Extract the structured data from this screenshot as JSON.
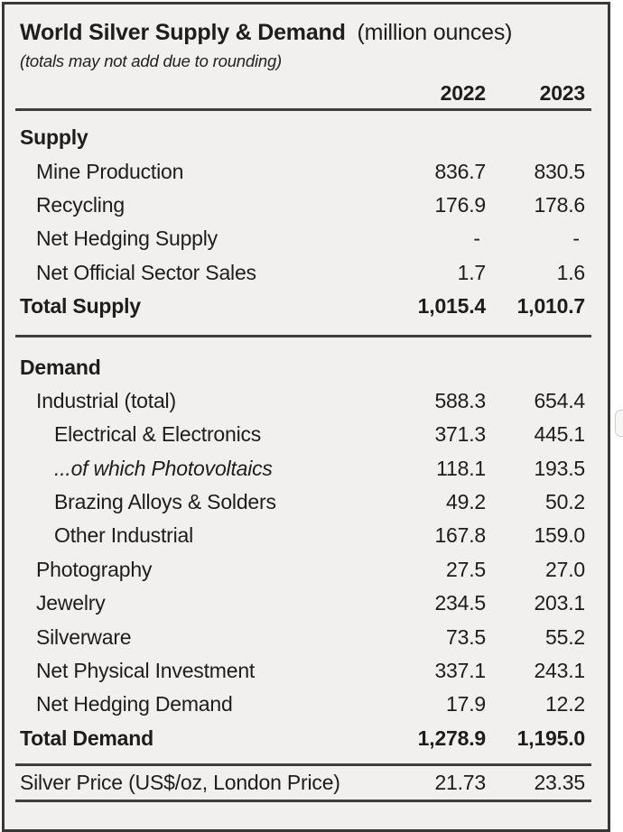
{
  "header": {
    "title": "World Silver Supply & Demand",
    "unit": "(million ounces)",
    "note": "(totals may not add due to rounding)",
    "col1": "2022",
    "col2": "2023"
  },
  "table": {
    "rows": [
      {
        "label": "Supply",
        "v1": "",
        "v2": ""
      },
      {
        "label": "Mine Production",
        "v1": "836.7",
        "v2": "830.5"
      },
      {
        "label": "Recycling",
        "v1": "176.9",
        "v2": "178.6"
      },
      {
        "label": "Net Hedging Supply",
        "v1": "- ",
        "v2": "- "
      },
      {
        "label": "Net Official Sector Sales",
        "v1": "1.7",
        "v2": "1.6"
      },
      {
        "label": "Total Supply",
        "v1": "1,015.4",
        "v2": "1,010.7"
      },
      {
        "label": "Demand",
        "v1": "",
        "v2": ""
      },
      {
        "label": "Industrial (total)",
        "v1": "588.3",
        "v2": "654.4"
      },
      {
        "label": "Electrical & Electronics",
        "v1": "371.3",
        "v2": "445.1"
      },
      {
        "label": "...of which Photovoltaics",
        "v1": "118.1",
        "v2": "193.5"
      },
      {
        "label": "Brazing Alloys & Solders",
        "v1": "49.2",
        "v2": "50.2"
      },
      {
        "label": "Other Industrial",
        "v1": "167.8",
        "v2": "159.0"
      },
      {
        "label": "Photography",
        "v1": "27.5",
        "v2": "27.0"
      },
      {
        "label": "Jewelry",
        "v1": "234.5",
        "v2": "203.1"
      },
      {
        "label": "Silverware",
        "v1": "73.5",
        "v2": "55.2"
      },
      {
        "label": "Net Physical Investment",
        "v1": "337.1",
        "v2": "243.1"
      },
      {
        "label": "Net Hedging Demand",
        "v1": "17.9",
        "v2": "12.2"
      },
      {
        "label": "Total Demand",
        "v1": "1,278.9",
        "v2": "1,195.0"
      },
      {
        "label": "Silver Price (US$/oz, London Price)",
        "v1": "21.73",
        "v2": "23.35"
      }
    ]
  },
  "colors": {
    "panel_background": "#f1f0ee",
    "border": "#383838",
    "rule": "#3f3f3f",
    "text": "#1d1d1d"
  },
  "chart_data": {
    "type": "table",
    "title": "World Silver Supply & Demand (million ounces)",
    "note": "(totals may not add due to rounding)",
    "columns": [
      "2022",
      "2023"
    ],
    "rows": [
      {
        "label": "Supply",
        "role": "section",
        "values": [
          null,
          null
        ]
      },
      {
        "label": "Mine Production",
        "role": "item",
        "values": [
          836.7,
          830.5
        ]
      },
      {
        "label": "Recycling",
        "role": "item",
        "values": [
          176.9,
          178.6
        ]
      },
      {
        "label": "Net Hedging Supply",
        "role": "item",
        "values": [
          null,
          null
        ]
      },
      {
        "label": "Net Official Sector Sales",
        "role": "item",
        "values": [
          1.7,
          1.6
        ]
      },
      {
        "label": "Total Supply",
        "role": "total",
        "values": [
          1015.4,
          1010.7
        ]
      },
      {
        "label": "Demand",
        "role": "section",
        "values": [
          null,
          null
        ]
      },
      {
        "label": "Industrial (total)",
        "role": "item",
        "values": [
          588.3,
          654.4
        ]
      },
      {
        "label": "Electrical & Electronics",
        "role": "subitem",
        "values": [
          371.3,
          445.1
        ]
      },
      {
        "label": "...of which Photovoltaics",
        "role": "subitem-italic",
        "values": [
          118.1,
          193.5
        ]
      },
      {
        "label": "Brazing Alloys & Solders",
        "role": "subitem",
        "values": [
          49.2,
          50.2
        ]
      },
      {
        "label": "Other Industrial",
        "role": "subitem",
        "values": [
          167.8,
          159.0
        ]
      },
      {
        "label": "Photography",
        "role": "item",
        "values": [
          27.5,
          27.0
        ]
      },
      {
        "label": "Jewelry",
        "role": "item",
        "values": [
          234.5,
          203.1
        ]
      },
      {
        "label": "Silverware",
        "role": "item",
        "values": [
          73.5,
          55.2
        ]
      },
      {
        "label": "Net Physical Investment",
        "role": "item",
        "values": [
          337.1,
          243.1
        ]
      },
      {
        "label": "Net Hedging Demand",
        "role": "item",
        "values": [
          17.9,
          12.2
        ]
      },
      {
        "label": "Total Demand",
        "role": "total",
        "values": [
          1278.9,
          1195.0
        ]
      },
      {
        "label": "Silver Price (US$/oz, London Price)",
        "role": "price",
        "values": [
          21.73,
          23.35
        ]
      }
    ]
  }
}
